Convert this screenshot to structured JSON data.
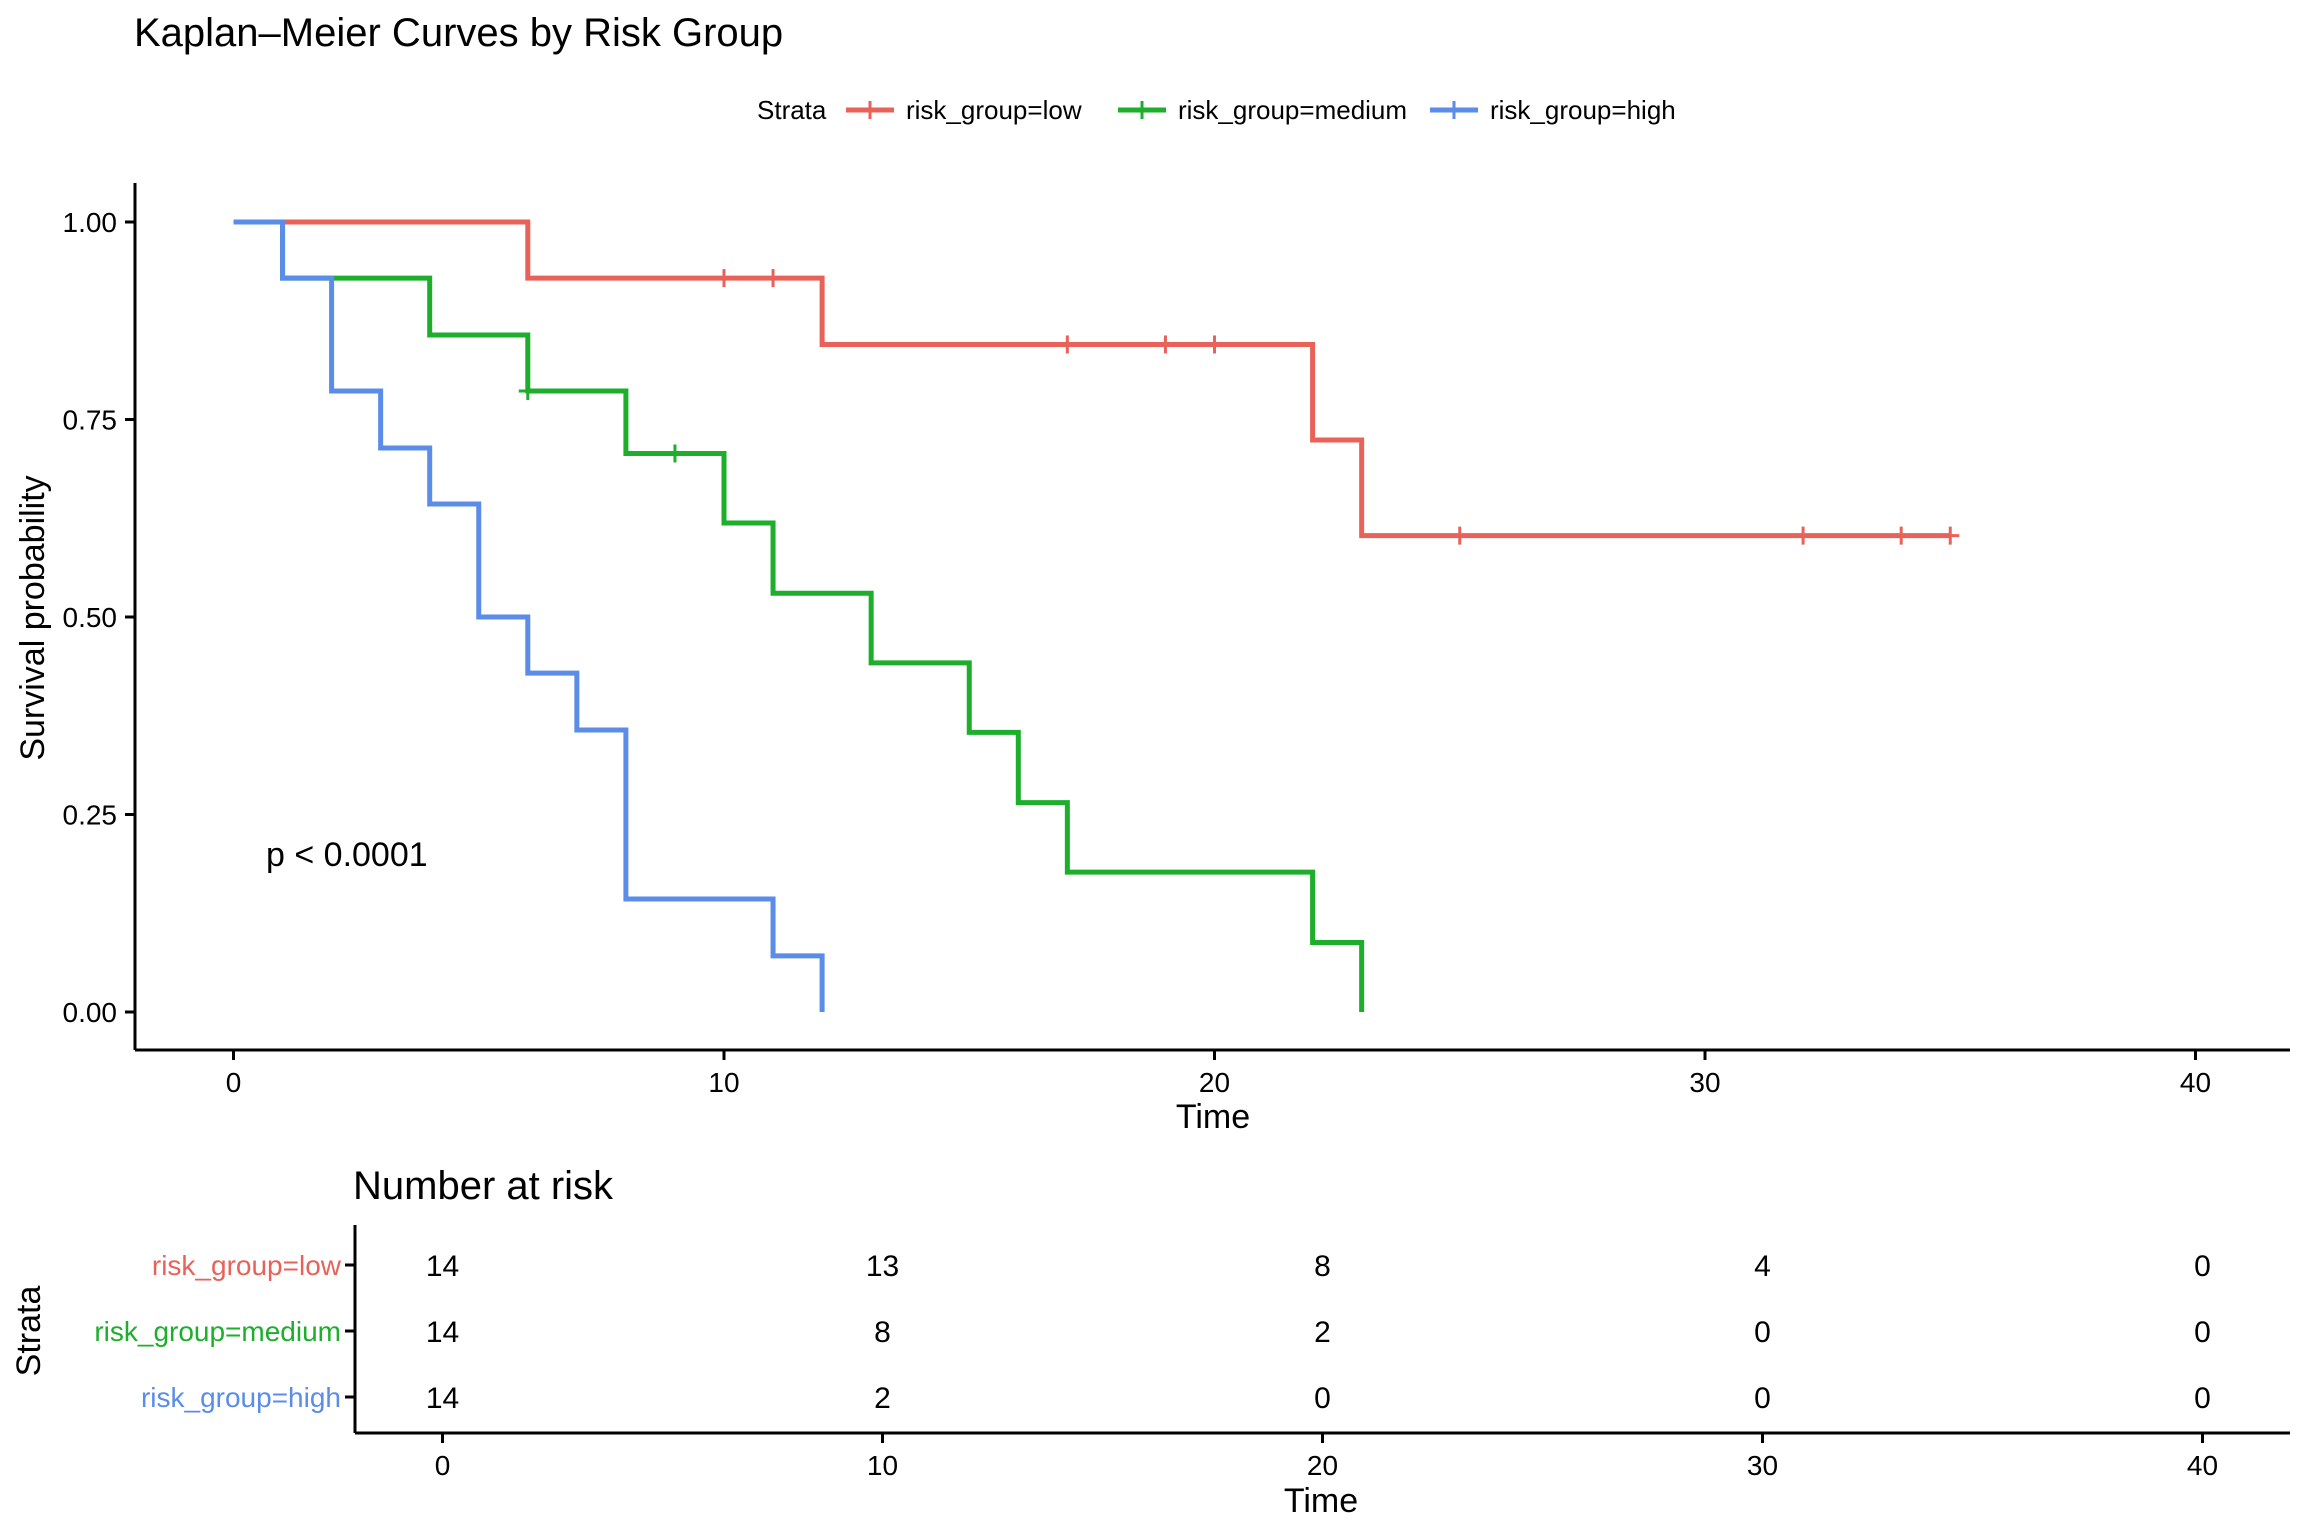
{
  "chart_data": [
    {
      "type": "line",
      "subtype": "kaplan-meier-step",
      "title": "Kaplan–Meier Curves by Risk Group",
      "xlabel": "Time",
      "ylabel": "Survival probability",
      "xlim": [
        -2,
        42
      ],
      "ylim": [
        -0.05,
        1.05
      ],
      "x_ticks": [
        0,
        10,
        20,
        30,
        40
      ],
      "y_ticks": [
        0.0,
        0.25,
        0.5,
        0.75,
        1.0
      ],
      "y_tick_labels": [
        "0.00",
        "0.25",
        "0.50",
        "0.75",
        "1.00"
      ],
      "grid": false,
      "legend": {
        "title": "Strata",
        "position": "top"
      },
      "annotation": "p < 0.0001",
      "series": [
        {
          "name": "risk_group=low",
          "color": "#E8625A",
          "steps": [
            [
              0,
              1.0
            ],
            [
              6,
              0.929
            ],
            [
              12,
              0.845
            ],
            [
              22,
              0.724
            ],
            [
              23,
              0.603
            ]
          ],
          "end_x": 35,
          "censored": [
            [
              10,
              0.929
            ],
            [
              11,
              0.929
            ],
            [
              17,
              0.845
            ],
            [
              19,
              0.845
            ],
            [
              20,
              0.845
            ],
            [
              25,
              0.603
            ],
            [
              32,
              0.603
            ],
            [
              34,
              0.603
            ],
            [
              35,
              0.603
            ]
          ]
        },
        {
          "name": "risk_group=medium",
          "color": "#1DAE2C",
          "steps": [
            [
              0,
              1.0
            ],
            [
              1,
              0.929
            ],
            [
              4,
              0.857
            ],
            [
              6,
              0.786
            ],
            [
              8,
              0.707
            ],
            [
              10,
              0.619
            ],
            [
              11,
              0.53
            ],
            [
              13,
              0.442
            ],
            [
              15,
              0.354
            ],
            [
              16,
              0.265
            ],
            [
              17,
              0.177
            ],
            [
              22,
              0.088
            ],
            [
              23,
              0.0
            ]
          ],
          "end_x": 23,
          "censored": [
            [
              6,
              0.786
            ],
            [
              9,
              0.707
            ]
          ]
        },
        {
          "name": "risk_group=high",
          "color": "#5A8CE8",
          "steps": [
            [
              0,
              1.0
            ],
            [
              1,
              0.929
            ],
            [
              2,
              0.786
            ],
            [
              3,
              0.714
            ],
            [
              4,
              0.643
            ],
            [
              5,
              0.5
            ],
            [
              6,
              0.429
            ],
            [
              7,
              0.357
            ],
            [
              8,
              0.143
            ],
            [
              11,
              0.071
            ],
            [
              12,
              0.0
            ]
          ],
          "end_x": 12,
          "censored": []
        }
      ]
    },
    {
      "type": "table",
      "title": "Number at risk",
      "xlabel": "Time",
      "ylabel": "Strata",
      "xlim": [
        -2,
        42
      ],
      "x_ticks": [
        0,
        10,
        20,
        30,
        40
      ],
      "rows": [
        {
          "name": "risk_group=low",
          "color": "#E8625A",
          "values": [
            14,
            13,
            8,
            4,
            0
          ]
        },
        {
          "name": "risk_group=medium",
          "color": "#1DAE2C",
          "values": [
            14,
            8,
            2,
            0,
            0
          ]
        },
        {
          "name": "risk_group=high",
          "color": "#5A8CE8",
          "values": [
            14,
            2,
            0,
            0,
            0
          ]
        }
      ]
    }
  ]
}
